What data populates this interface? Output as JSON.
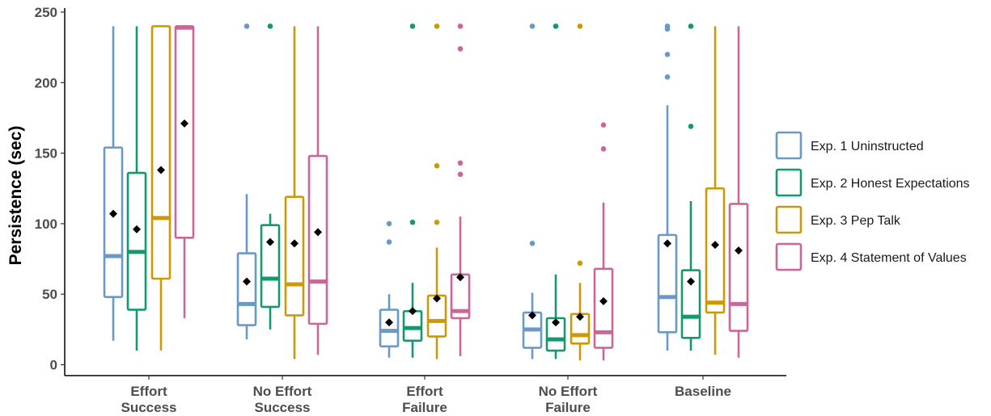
{
  "chart_data": {
    "type": "boxplot",
    "ylabel": "Persistence (sec)",
    "xlabel": "",
    "ylim": [
      0,
      250
    ],
    "yticks": [
      0,
      50,
      100,
      150,
      200,
      250
    ],
    "grid": false,
    "legend_position": "right",
    "categories": [
      [
        "Effort",
        "Success"
      ],
      [
        "No Effort",
        "Success"
      ],
      [
        "Effort",
        "Failure"
      ],
      [
        "No Effort",
        "Failure"
      ],
      [
        "Baseline"
      ]
    ],
    "series": [
      {
        "name": "Exp. 1 Uninstructed",
        "color": "#6a99c8",
        "boxes": [
          {
            "min": 17,
            "q1": 48,
            "median": 77,
            "q3": 154,
            "max": 240,
            "mean": 107,
            "outliers": []
          },
          {
            "min": 18,
            "q1": 28,
            "median": 43,
            "q3": 79,
            "max": 121,
            "mean": 59,
            "outliers": [
              240
            ]
          },
          {
            "min": 5,
            "q1": 13,
            "median": 24,
            "q3": 39,
            "max": 50,
            "mean": 30,
            "outliers": [
              87,
              100
            ]
          },
          {
            "min": 4,
            "q1": 12,
            "median": 25,
            "q3": 37,
            "max": 51,
            "mean": 35,
            "outliers": [
              86,
              240
            ]
          },
          {
            "min": 10,
            "q1": 23,
            "median": 48,
            "q3": 92,
            "max": 184,
            "mean": 86,
            "outliers": [
              204,
              220,
              238,
              240
            ]
          }
        ]
      },
      {
        "name": "Exp. 2 Honest Expectations",
        "color": "#14996e",
        "boxes": [
          {
            "min": 10,
            "q1": 39,
            "median": 80,
            "q3": 136,
            "max": 240,
            "mean": 96,
            "outliers": []
          },
          {
            "min": 25,
            "q1": 41,
            "median": 61,
            "q3": 99,
            "max": 107,
            "mean": 87,
            "outliers": [
              240
            ]
          },
          {
            "min": 5,
            "q1": 17,
            "median": 26,
            "q3": 38,
            "max": 58,
            "mean": 38,
            "outliers": [
              101,
              240
            ]
          },
          {
            "min": 4,
            "q1": 10,
            "median": 18,
            "q3": 33,
            "max": 64,
            "mean": 30,
            "outliers": [
              240
            ]
          },
          {
            "min": 10,
            "q1": 19,
            "median": 34,
            "q3": 67,
            "max": 116,
            "mean": 59,
            "outliers": [
              169,
              240
            ]
          }
        ]
      },
      {
        "name": "Exp. 3 Pep Talk",
        "color": "#cc9a06",
        "boxes": [
          {
            "min": 10,
            "q1": 61,
            "median": 104,
            "q3": 240,
            "max": 240,
            "mean": 138,
            "outliers": []
          },
          {
            "min": 4,
            "q1": 35,
            "median": 57,
            "q3": 119,
            "max": 240,
            "mean": 86,
            "outliers": []
          },
          {
            "min": 4,
            "q1": 20,
            "median": 31,
            "q3": 49,
            "max": 83,
            "mean": 47,
            "outliers": [
              101,
              141,
              240
            ]
          },
          {
            "min": 3,
            "q1": 15,
            "median": 21,
            "q3": 36,
            "max": 58,
            "mean": 34,
            "outliers": [
              72,
              240
            ]
          },
          {
            "min": 7,
            "q1": 37,
            "median": 44,
            "q3": 125,
            "max": 240,
            "mean": 85,
            "outliers": []
          }
        ]
      },
      {
        "name": "Exp. 4 Statement of Values",
        "color": "#cc6699",
        "boxes": [
          {
            "min": 33,
            "q1": 90,
            "median": 239,
            "q3": 240,
            "max": 240,
            "mean": 171,
            "outliers": []
          },
          {
            "min": 7,
            "q1": 29,
            "median": 59,
            "q3": 148,
            "max": 240,
            "mean": 94,
            "outliers": []
          },
          {
            "min": 6,
            "q1": 33,
            "median": 38,
            "q3": 64,
            "max": 105,
            "mean": 62,
            "outliers": [
              135,
              143,
              224,
              240
            ]
          },
          {
            "min": 3,
            "q1": 12,
            "median": 23,
            "q3": 68,
            "max": 115,
            "mean": 45,
            "outliers": [
              153,
              170
            ]
          },
          {
            "min": 5,
            "q1": 24,
            "median": 43,
            "q3": 114,
            "max": 240,
            "mean": 81,
            "outliers": []
          }
        ]
      }
    ]
  }
}
